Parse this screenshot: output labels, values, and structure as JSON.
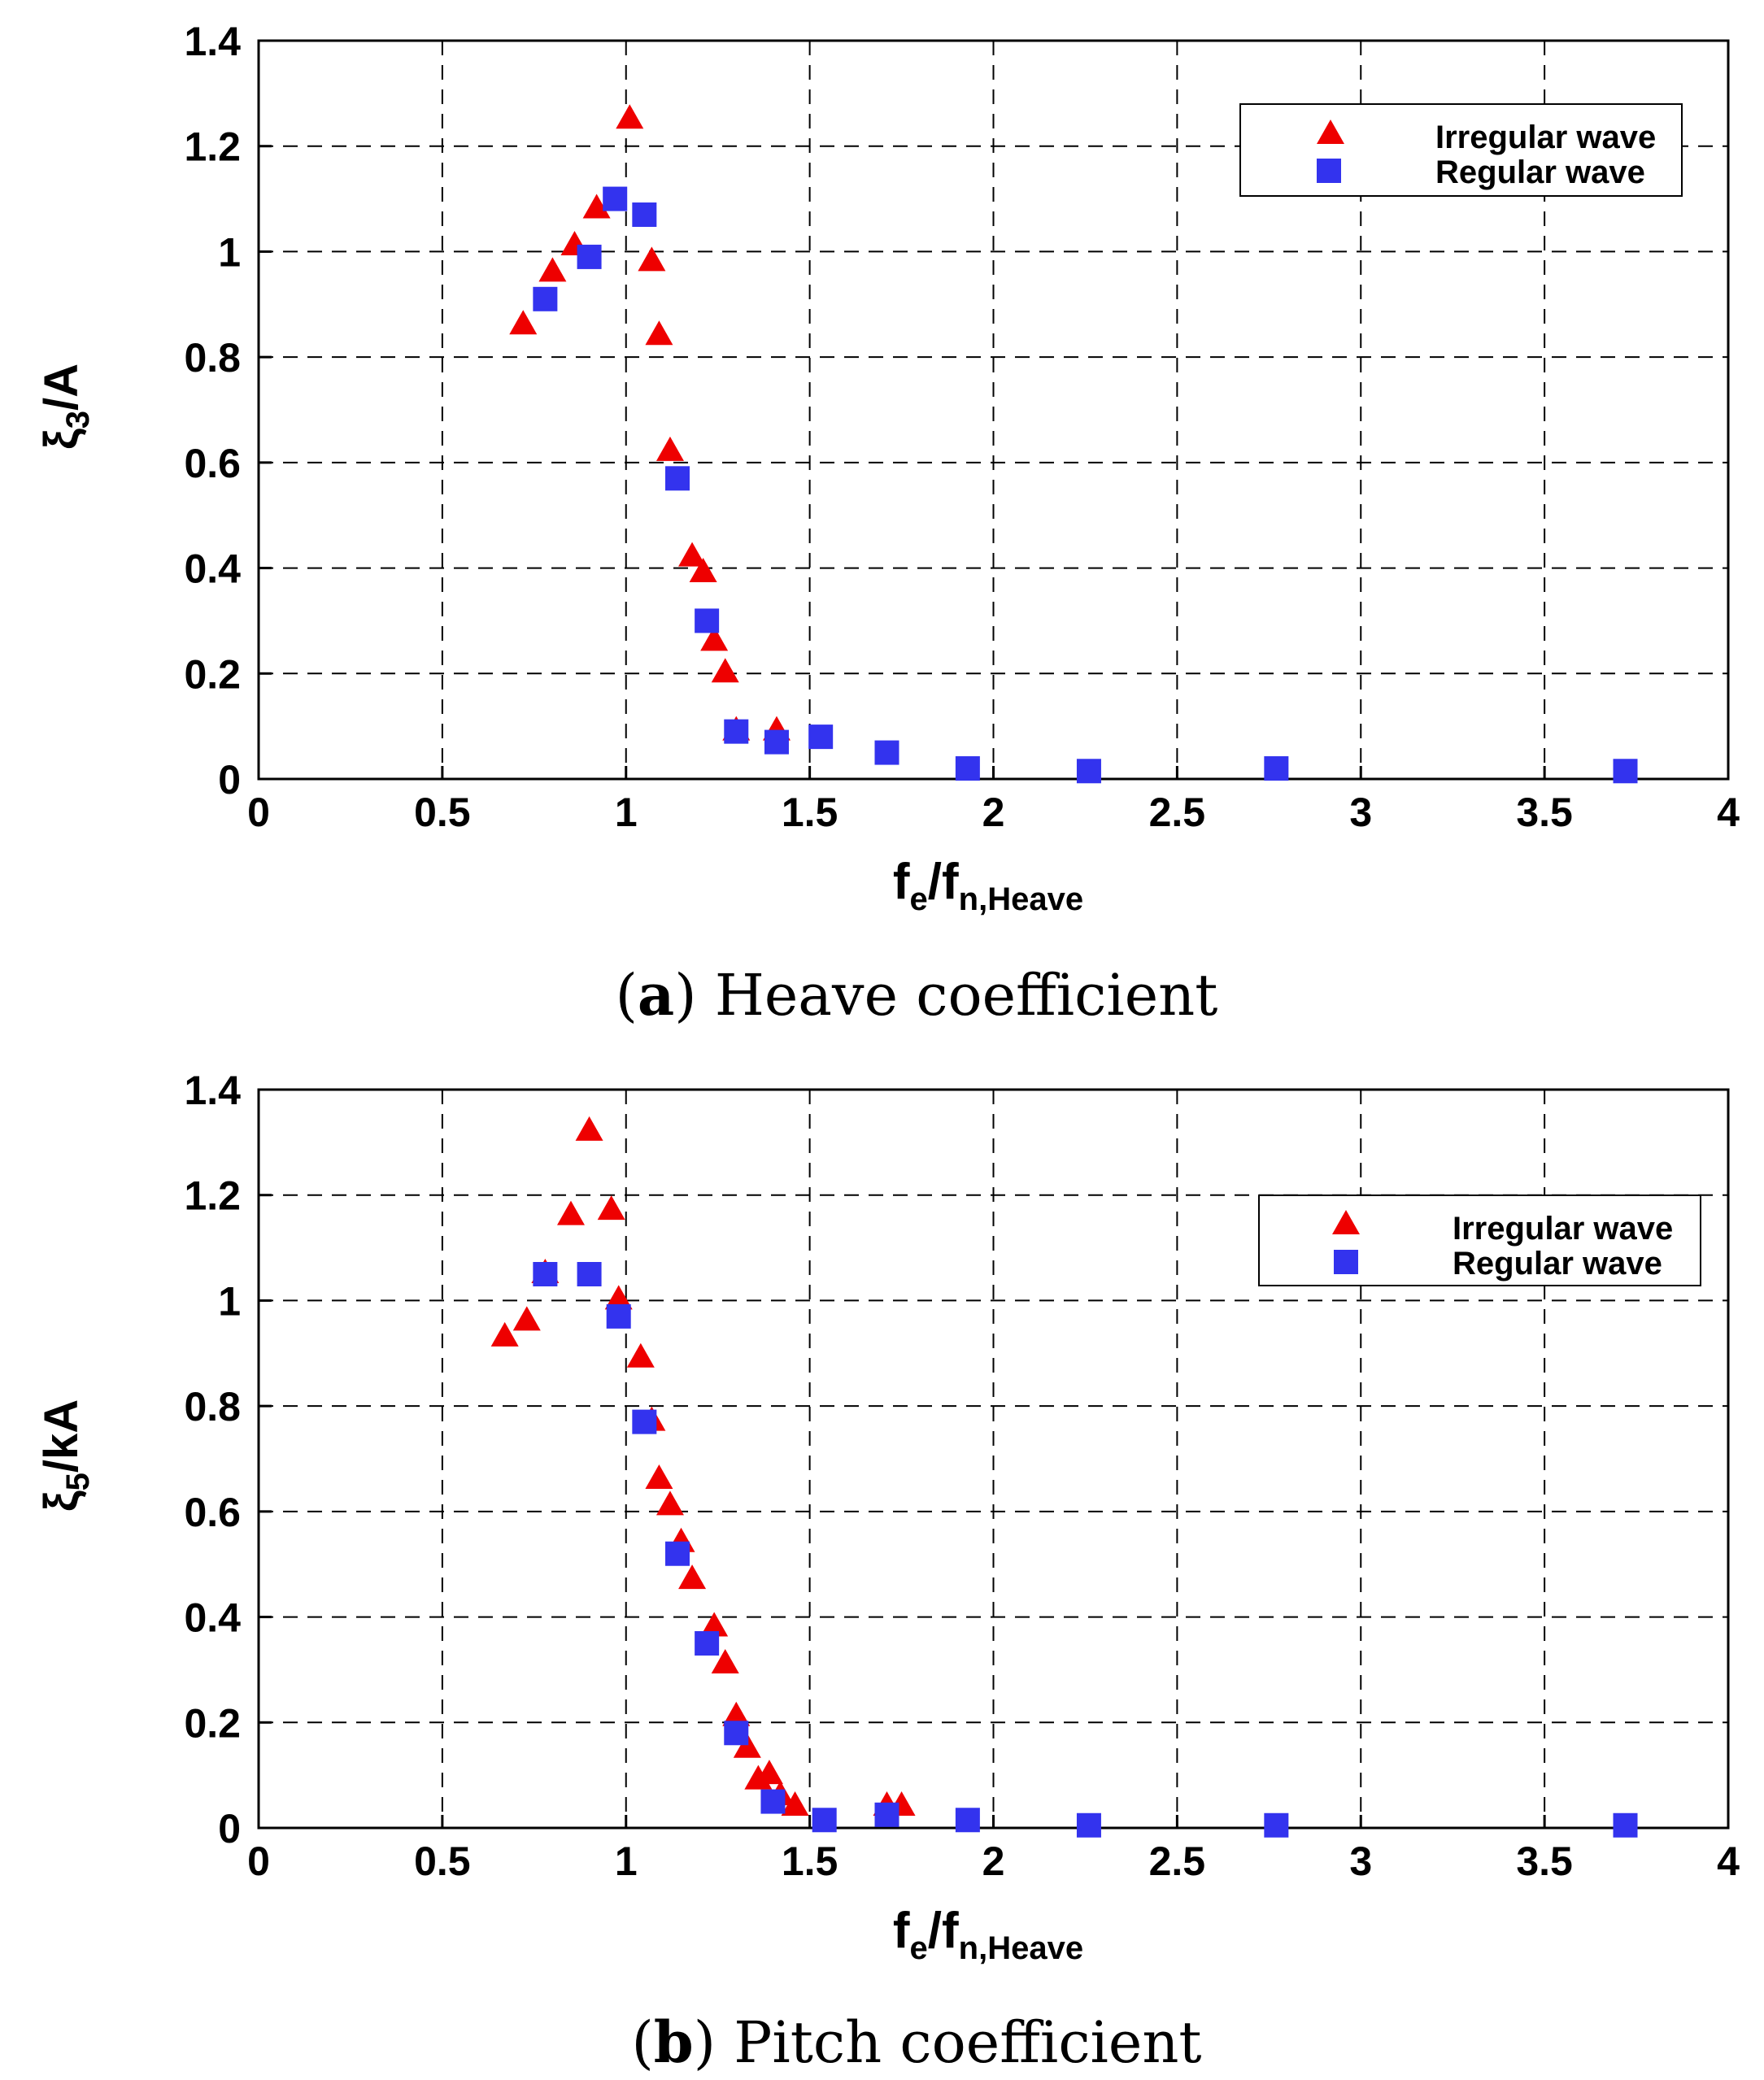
{
  "colors": {
    "irregular": "#ee0000",
    "regular": "#3333ee",
    "axis": "#000000"
  },
  "chart_data": [
    {
      "type": "scatter",
      "caption_letter": "a",
      "caption_text": "Heave coefficient",
      "ylabel_main": "ξ",
      "ylabel_sub": "3",
      "ylabel_rest": "/A",
      "xlabel_main": "f",
      "xlabel_sub1": "e",
      "xlabel_mid": "/f",
      "xlabel_sub2": "n,Heave",
      "xlim": [
        0,
        4
      ],
      "ylim": [
        0,
        1.4
      ],
      "xticks": [
        0,
        0.5,
        1,
        1.5,
        2,
        2.5,
        3,
        3.5,
        4
      ],
      "xtick_labels": [
        "0",
        "0.5",
        "1",
        "1.5",
        "2",
        "2.5",
        "3",
        "3.5",
        "4"
      ],
      "yticks": [
        0,
        0.2,
        0.4,
        0.6,
        0.8,
        1,
        1.2,
        1.4
      ],
      "ytick_labels": [
        "0",
        "0.2",
        "0.4",
        "0.6",
        "0.8",
        "1",
        "1.2",
        "1.4"
      ],
      "grid": true,
      "legend_position": "top-right",
      "series": [
        {
          "name": "Irregular wave",
          "marker": "triangle",
          "x": [
            0.72,
            0.8,
            0.86,
            0.92,
            1.01,
            1.07,
            1.09,
            1.12,
            1.18,
            1.21,
            1.24,
            1.27,
            1.3,
            1.41
          ],
          "y": [
            0.86,
            0.96,
            1.01,
            1.08,
            1.25,
            0.98,
            0.84,
            0.62,
            0.42,
            0.39,
            0.26,
            0.2,
            0.09,
            0.09
          ]
        },
        {
          "name": "Regular wave",
          "marker": "square",
          "x": [
            0.78,
            0.9,
            0.97,
            1.05,
            1.14,
            1.22,
            1.3,
            1.41,
            1.53,
            1.71,
            1.93,
            2.26,
            2.77,
            3.72
          ],
          "y": [
            0.91,
            0.99,
            1.1,
            1.07,
            0.57,
            0.3,
            0.09,
            0.07,
            0.08,
            0.05,
            0.02,
            0.015,
            0.02,
            0.015
          ]
        }
      ]
    },
    {
      "type": "scatter",
      "caption_letter": "b",
      "caption_text": "Pitch coefficient",
      "ylabel_main": "ξ",
      "ylabel_sub": "5",
      "ylabel_rest": "/kA",
      "xlabel_main": "f",
      "xlabel_sub1": "e",
      "xlabel_mid": "/f",
      "xlabel_sub2": "n,Heave",
      "xlim": [
        0,
        4
      ],
      "ylim": [
        0,
        1.4
      ],
      "xticks": [
        0,
        0.5,
        1,
        1.5,
        2,
        2.5,
        3,
        3.5,
        4
      ],
      "xtick_labels": [
        "0",
        "0.5",
        "1",
        "1.5",
        "2",
        "2.5",
        "3",
        "3.5",
        "4"
      ],
      "yticks": [
        0,
        0.2,
        0.4,
        0.6,
        0.8,
        1,
        1.2,
        1.4
      ],
      "ytick_labels": [
        "0",
        "0.2",
        "0.4",
        "0.6",
        "0.8",
        "1",
        "1.2",
        "1.4"
      ],
      "grid": true,
      "legend_position": "top-right",
      "series": [
        {
          "name": "Irregular wave",
          "marker": "triangle",
          "x": [
            0.67,
            0.73,
            0.78,
            0.85,
            0.9,
            0.96,
            0.98,
            1.04,
            1.07,
            1.09,
            1.12,
            1.15,
            1.18,
            1.24,
            1.27,
            1.3,
            1.33,
            1.36,
            1.39,
            1.42,
            1.46,
            1.71,
            1.75
          ],
          "y": [
            0.93,
            0.96,
            1.05,
            1.16,
            1.32,
            1.17,
            1.0,
            0.89,
            0.77,
            0.66,
            0.61,
            0.54,
            0.47,
            0.38,
            0.31,
            0.21,
            0.15,
            0.09,
            0.1,
            0.06,
            0.04,
            0.04,
            0.04
          ]
        },
        {
          "name": "Regular wave",
          "marker": "square",
          "x": [
            0.78,
            0.9,
            0.98,
            1.05,
            1.14,
            1.22,
            1.3,
            1.4,
            1.54,
            1.71,
            1.93,
            2.26,
            2.77,
            3.72
          ],
          "y": [
            1.05,
            1.05,
            0.97,
            0.77,
            0.52,
            0.35,
            0.18,
            0.05,
            0.015,
            0.025,
            0.015,
            0.005,
            0.005,
            0.005
          ]
        }
      ]
    }
  ]
}
